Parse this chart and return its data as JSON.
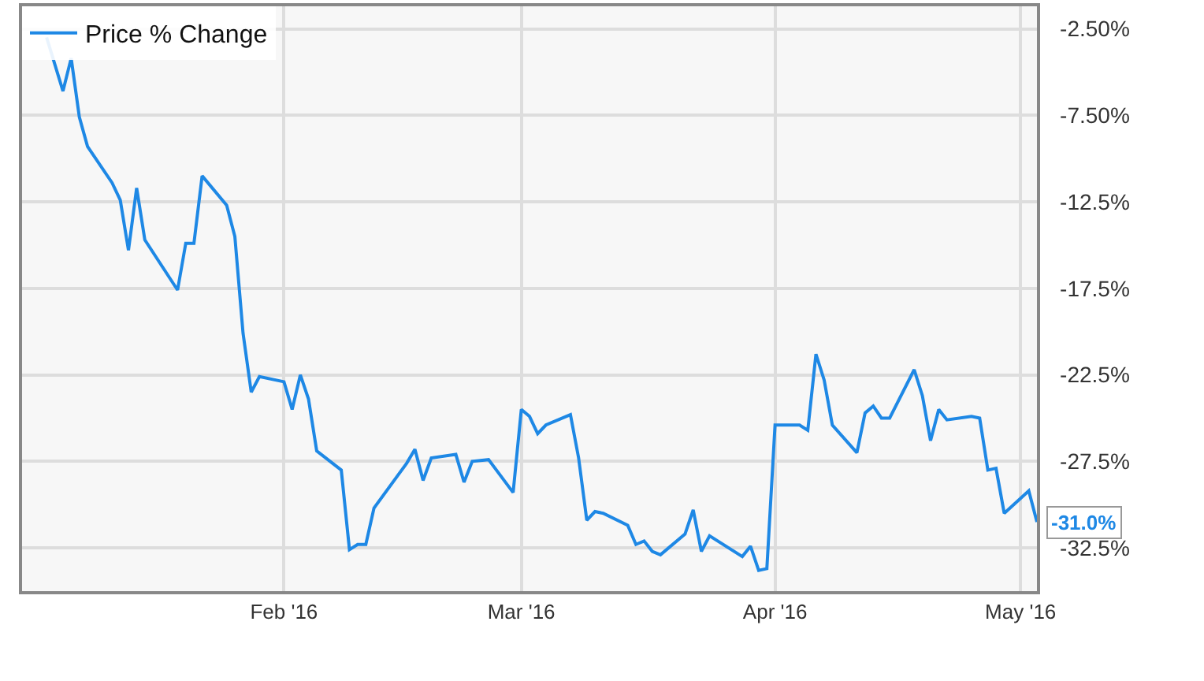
{
  "chart_data": {
    "type": "line",
    "legend": "top left",
    "grid": true,
    "marker": "none",
    "line_style": "solid",
    "xlim": [
      "2015-12-31",
      "2016-05-03"
    ],
    "xticks": [
      {
        "value": "2016-02-01",
        "label": "Feb '16"
      },
      {
        "value": "2016-03-01",
        "label": "Mar '16"
      },
      {
        "value": "2016-04-01",
        "label": "Apr '16"
      },
      {
        "value": "2016-05-01",
        "label": "May '16"
      }
    ],
    "ylim": [
      -35.0,
      -1.2
    ],
    "yticks": [
      {
        "value": -2.5,
        "label": "-2.50%"
      },
      {
        "value": -7.5,
        "label": "-7.50%"
      },
      {
        "value": -12.5,
        "label": "-12.5%"
      },
      {
        "value": -17.5,
        "label": "-17.5%"
      },
      {
        "value": -22.5,
        "label": "-22.5%"
      },
      {
        "value": -27.5,
        "label": "-27.5%"
      },
      {
        "value": -32.5,
        "label": "-32.5%"
      }
    ],
    "x": [
      "2016-01-03",
      "2016-01-05",
      "2016-01-06",
      "2016-01-07",
      "2016-01-08",
      "2016-01-11",
      "2016-01-12",
      "2016-01-13",
      "2016-01-14",
      "2016-01-15",
      "2016-01-19",
      "2016-01-20",
      "2016-01-21",
      "2016-01-22",
      "2016-01-25",
      "2016-01-26",
      "2016-01-27",
      "2016-01-28",
      "2016-01-29",
      "2016-02-01",
      "2016-02-02",
      "2016-02-03",
      "2016-02-04",
      "2016-02-05",
      "2016-02-08",
      "2016-02-09",
      "2016-02-10",
      "2016-02-11",
      "2016-02-12",
      "2016-02-16",
      "2016-02-17",
      "2016-02-18",
      "2016-02-19",
      "2016-02-22",
      "2016-02-23",
      "2016-02-24",
      "2016-02-26",
      "2016-02-29",
      "2016-03-01",
      "2016-03-02",
      "2016-03-03",
      "2016-03-04",
      "2016-03-07",
      "2016-03-08",
      "2016-03-09",
      "2016-03-10",
      "2016-03-11",
      "2016-03-14",
      "2016-03-15",
      "2016-03-16",
      "2016-03-17",
      "2016-03-18",
      "2016-03-21",
      "2016-03-22",
      "2016-03-23",
      "2016-03-24",
      "2016-03-28",
      "2016-03-29",
      "2016-03-30",
      "2016-03-31",
      "2016-04-01",
      "2016-04-04",
      "2016-04-05",
      "2016-04-06",
      "2016-04-07",
      "2016-04-08",
      "2016-04-11",
      "2016-04-12",
      "2016-04-13",
      "2016-04-14",
      "2016-04-15",
      "2016-04-18",
      "2016-04-19",
      "2016-04-20",
      "2016-04-21",
      "2016-04-22",
      "2016-04-25",
      "2016-04-26",
      "2016-04-27",
      "2016-04-28",
      "2016-04-29",
      "2016-05-02",
      "2016-05-03"
    ],
    "series": [
      {
        "name": "Price % Change",
        "color": "#1e88e5",
        "values": [
          -3.0,
          -6.1,
          -4.2,
          -7.6,
          -9.3,
          -11.4,
          -12.4,
          -15.3,
          -11.7,
          -14.7,
          -17.6,
          -14.9,
          -14.9,
          -11.0,
          -12.7,
          -14.5,
          -20.1,
          -23.5,
          -22.6,
          -22.9,
          -24.5,
          -22.5,
          -23.9,
          -26.9,
          -28.0,
          -32.6,
          -32.3,
          -32.3,
          -30.2,
          -27.6,
          -26.8,
          -28.6,
          -27.3,
          -27.1,
          -28.7,
          -27.5,
          -27.4,
          -29.3,
          -24.5,
          -24.9,
          -25.9,
          -25.4,
          -24.8,
          -27.3,
          -30.9,
          -30.4,
          -30.5,
          -31.2,
          -32.3,
          -32.1,
          -32.7,
          -32.9,
          -31.7,
          -30.3,
          -32.7,
          -31.8,
          -33.0,
          -32.4,
          -33.8,
          -33.7,
          -25.4,
          -25.4,
          -25.7,
          -21.3,
          -22.8,
          -25.4,
          -27.0,
          -24.7,
          -24.3,
          -25.0,
          -25.0,
          -22.2,
          -23.7,
          -26.3,
          -24.5,
          -25.1,
          -24.9,
          -25.0,
          -28.0,
          -27.9,
          -30.5,
          -29.2,
          -31.0
        ],
        "value_labels": [
          null,
          null,
          null,
          null,
          null,
          null,
          null,
          null,
          null,
          null,
          null,
          null,
          null,
          null,
          null,
          null,
          null,
          null,
          null,
          null,
          null,
          null,
          null,
          null,
          null,
          null,
          null,
          null,
          null,
          null,
          null,
          null,
          null,
          null,
          null,
          null,
          null,
          null,
          null,
          null,
          null,
          null,
          null,
          null,
          null,
          null,
          null,
          null,
          null,
          null,
          null,
          null,
          null,
          null,
          null,
          null,
          null,
          null,
          null,
          null,
          null,
          null,
          null,
          null,
          null,
          null,
          null,
          null,
          null,
          null,
          null,
          null,
          null,
          null,
          null,
          null,
          null,
          null,
          null,
          null,
          null,
          null,
          "-31.0%"
        ]
      }
    ]
  }
}
